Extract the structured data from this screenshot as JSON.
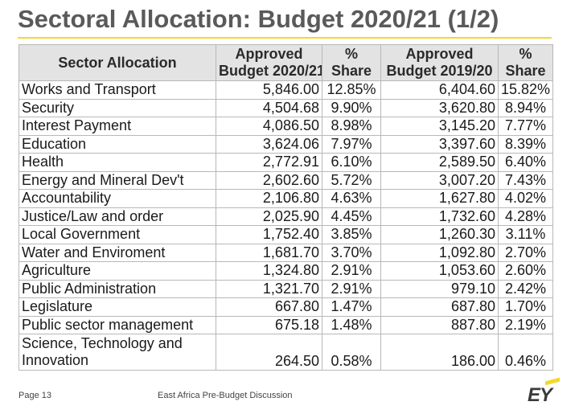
{
  "title": "Sectoral Allocation: Budget 2020/21 (1/2)",
  "headers": {
    "sector": "Sector Allocation",
    "approved_2021_line1": "Approved",
    "approved_2021_line2": "Budget 2020/21",
    "share_2021_line1": "%",
    "share_2021_line2": "Share",
    "approved_2020_line1": "Approved",
    "approved_2020_line2": "Budget 2019/20",
    "share_2020_line1": "%",
    "share_2020_line2": "Share"
  },
  "rows": [
    {
      "sector": "Works and Transport",
      "budget_2021": "5,846.00",
      "share_2021": "12.85%",
      "budget_2020": "6,404.60",
      "share_2020": "15.82%"
    },
    {
      "sector": "Security",
      "budget_2021": "4,504.68",
      "share_2021": "9.90%",
      "budget_2020": "3,620.80",
      "share_2020": "8.94%"
    },
    {
      "sector": "Interest Payment",
      "budget_2021": "4,086.50",
      "share_2021": "8.98%",
      "budget_2020": "3,145.20",
      "share_2020": "7.77%"
    },
    {
      "sector": "Education",
      "budget_2021": "3,624.06",
      "share_2021": "7.97%",
      "budget_2020": "3,397.60",
      "share_2020": "8.39%"
    },
    {
      "sector": "Health",
      "budget_2021": "2,772.91",
      "share_2021": "6.10%",
      "budget_2020": "2,589.50",
      "share_2020": "6.40%"
    },
    {
      "sector": "Energy and Mineral Dev't",
      "budget_2021": "2,602.60",
      "share_2021": "5.72%",
      "budget_2020": "3,007.20",
      "share_2020": "7.43%"
    },
    {
      "sector": "Accountability",
      "budget_2021": "2,106.80",
      "share_2021": "4.63%",
      "budget_2020": "1,627.80",
      "share_2020": "4.02%"
    },
    {
      "sector": "Justice/Law and order",
      "budget_2021": "2,025.90",
      "share_2021": "4.45%",
      "budget_2020": "1,732.60",
      "share_2020": "4.28%"
    },
    {
      "sector": "Local Government",
      "budget_2021": "1,752.40",
      "share_2021": "3.85%",
      "budget_2020": "1,260.30",
      "share_2020": "3.11%"
    },
    {
      "sector": "Water and Enviroment",
      "budget_2021": "1,681.70",
      "share_2021": "3.70%",
      "budget_2020": "1,092.80",
      "share_2020": "2.70%"
    },
    {
      "sector": "Agriculture",
      "budget_2021": "1,324.80",
      "share_2021": "2.91%",
      "budget_2020": "1,053.60",
      "share_2020": "2.60%"
    },
    {
      "sector": "Public Administration",
      "budget_2021": "1,321.70",
      "share_2021": "2.91%",
      "budget_2020": "979.10",
      "share_2020": "2.42%"
    },
    {
      "sector": "Legislature",
      "budget_2021": "667.80",
      "share_2021": "1.47%",
      "budget_2020": "687.80",
      "share_2020": "1.70%"
    },
    {
      "sector": "Public sector management",
      "budget_2021": "675.18",
      "share_2021": "1.48%",
      "budget_2020": "887.80",
      "share_2020": "2.19%"
    },
    {
      "sector": "Science, Technology and Innovation",
      "budget_2021": "264.50",
      "share_2021": "0.58%",
      "budget_2020": "186.00",
      "share_2020": "0.46%"
    }
  ],
  "footer": {
    "page": "Page 13",
    "caption": "East Africa Pre-Budget Discussion",
    "logo": "EY"
  },
  "colors": {
    "accent": "#f3d92a",
    "title": "#5a5a5a",
    "header_bg": "#e3e3e3"
  }
}
